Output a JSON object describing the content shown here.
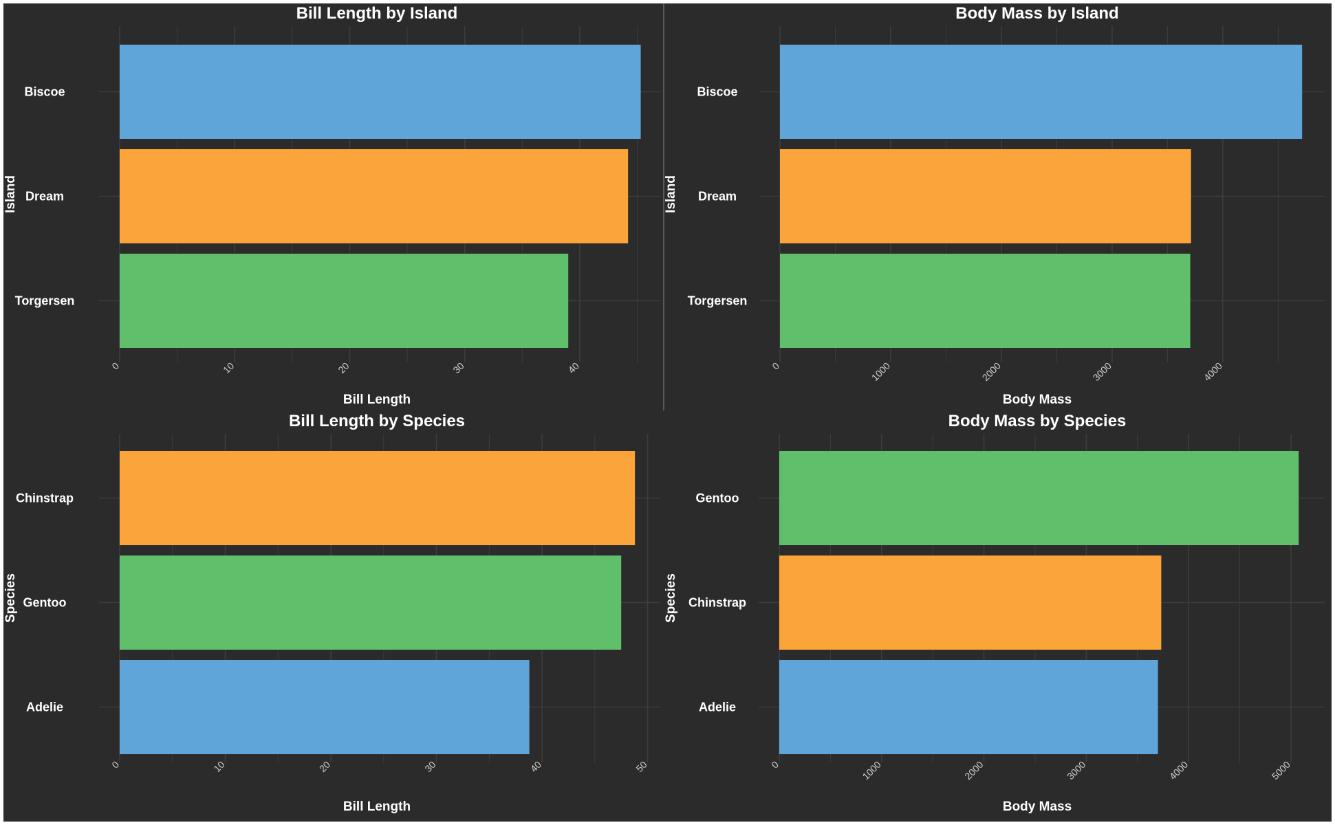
{
  "colors": {
    "background": "#2b2b2b",
    "grid": "#3d3d3d",
    "text": "#ffffff",
    "tick_text": "#cfcfcf",
    "blue": "#5fa5da",
    "orange": "#faa43a",
    "green": "#60bf6a"
  },
  "chart_data": [
    {
      "type": "bar",
      "orientation": "horizontal",
      "title": "Bill Length by Island",
      "xlabel": "Bill Length",
      "ylabel": "Island",
      "categories": [
        "Biscoe",
        "Dream",
        "Torgersen"
      ],
      "values": [
        45.3,
        44.2,
        39.0
      ],
      "bar_colors": [
        "#5fa5da",
        "#faa43a",
        "#60bf6a"
      ],
      "xlim": [
        0,
        47
      ],
      "xticks": [
        0,
        10,
        20,
        30,
        40
      ],
      "grid": true
    },
    {
      "type": "bar",
      "orientation": "horizontal",
      "title": "Body Mass by Island",
      "xlabel": "Body Mass",
      "ylabel": "Island",
      "categories": [
        "Biscoe",
        "Dream",
        "Torgersen"
      ],
      "values": [
        4716,
        3713,
        3706
      ],
      "bar_colors": [
        "#5fa5da",
        "#faa43a",
        "#60bf6a"
      ],
      "xlim": [
        0,
        4920
      ],
      "xticks": [
        0,
        1000,
        2000,
        3000,
        4000
      ],
      "grid": true
    },
    {
      "type": "bar",
      "orientation": "horizontal",
      "title": "Bill Length by Species",
      "xlabel": "Bill Length",
      "ylabel": "Species",
      "categories": [
        "Chinstrap",
        "Gentoo",
        "Adelie"
      ],
      "values": [
        48.8,
        47.5,
        38.8
      ],
      "bar_colors": [
        "#faa43a",
        "#60bf6a",
        "#5fa5da"
      ],
      "xlim": [
        0,
        51.2
      ],
      "xticks": [
        0,
        10,
        20,
        30,
        40,
        50
      ],
      "grid": true
    },
    {
      "type": "bar",
      "orientation": "horizontal",
      "title": "Body Mass by Species",
      "xlabel": "Body Mass",
      "ylabel": "Species",
      "categories": [
        "Gentoo",
        "Chinstrap",
        "Adelie"
      ],
      "values": [
        5076,
        3733,
        3701
      ],
      "bar_colors": [
        "#60bf6a",
        "#faa43a",
        "#5fa5da"
      ],
      "xlim": [
        0,
        5330
      ],
      "xticks": [
        0,
        1000,
        2000,
        3000,
        4000,
        5000
      ],
      "grid": true
    }
  ]
}
